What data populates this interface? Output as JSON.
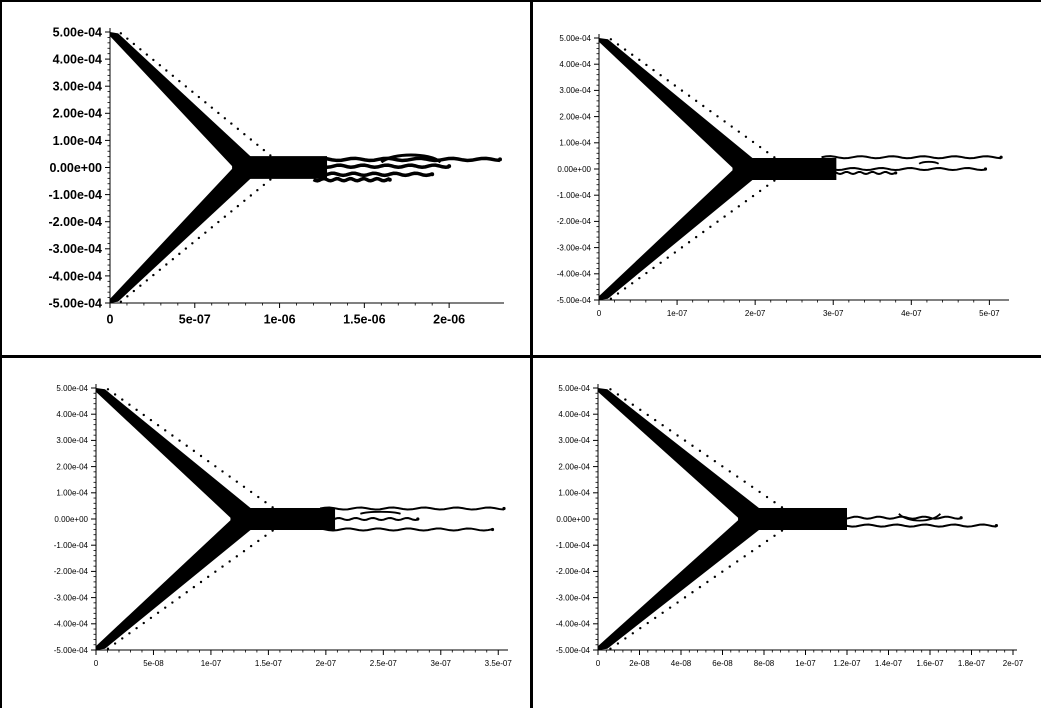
{
  "chart_data": [
    {
      "type": "scatter",
      "title": "",
      "xlabel": "",
      "ylabel": "",
      "xlim": [
        0,
        2.3e-06
      ],
      "ylim": [
        -0.0005,
        0.0005
      ],
      "x_ticks": [
        0,
        5e-07,
        1e-06,
        1.5e-06,
        2e-06
      ],
      "x_tick_labels": [
        "0",
        "5e-07",
        "1e-06",
        "1.5e-06",
        "2e-06"
      ],
      "y_ticks": [
        0.0005,
        0.0004,
        0.0003,
        0.0002,
        0.0001,
        0,
        -0.0001,
        -0.0002,
        -0.0003,
        -0.0004,
        -0.0005
      ],
      "y_tick_labels": [
        "5.00e-04",
        "4.00e-04",
        "3.00e-04",
        "2.00e-04",
        "1.00e-04",
        "0.00e+00",
        "-1.00e-04",
        "-2.00e-04",
        "-3.00e-04",
        "-4.00e-04",
        "-5.00e-04"
      ],
      "grid": false,
      "features": {
        "upper_branch_start": [
          0,
          0.0005
        ],
        "lower_branch_start": [
          0,
          -0.0005
        ],
        "convergence_x": 8e-07,
        "upper_edge_end": [
          8.5e-07,
          2e-05
        ],
        "trails": [
          {
            "x_end": 2.3e-06,
            "y": 3e-05
          },
          {
            "x_end": 2e-06,
            "y": 5e-06
          },
          {
            "x_end": 1.9e-06,
            "y": -2.5e-05
          },
          {
            "x_end": 1.65e-06,
            "y": -4.5e-05
          }
        ],
        "loop": {
          "x": [
            1.6e-06,
            1.95e-06
          ],
          "y": 5.5e-05
        }
      }
    },
    {
      "type": "scatter",
      "title": "",
      "xlabel": "",
      "ylabel": "",
      "xlim": [
        0,
        5.2e-07
      ],
      "ylim": [
        -0.0005,
        0.0005
      ],
      "x_ticks": [
        0,
        1e-07,
        2e-07,
        3e-07,
        4e-07,
        5e-07
      ],
      "x_tick_labels": [
        "0",
        "1e-07",
        "2e-07",
        "3e-07",
        "4e-07",
        "5e-07"
      ],
      "y_ticks": [
        0.0005,
        0.0004,
        0.0003,
        0.0002,
        0.0001,
        0,
        -0.0001,
        -0.0002,
        -0.0003,
        -0.0004,
        -0.0005
      ],
      "y_tick_labels": [
        "5.00e-04",
        "4.00e-04",
        "3.00e-04",
        "2.00e-04",
        "1.00e-04",
        "0.00e+00",
        "-1.00e-04",
        "-2.00e-04",
        "-3.00e-04",
        "-4.00e-04",
        "-5.00e-04"
      ],
      "grid": false,
      "features": {
        "convergence_x": 1.9e-07,
        "trails": [
          {
            "x_end": 5.15e-07,
            "y": 4.5e-05
          },
          {
            "x_end": 4.95e-07,
            "y": 0.0
          },
          {
            "x_end": 3.8e-07,
            "y": -1.5e-05
          }
        ],
        "loop": {
          "x": [
            4.1e-07,
            4.35e-07
          ],
          "y": 3e-05
        }
      }
    },
    {
      "type": "scatter",
      "title": "",
      "xlabel": "",
      "ylabel": "",
      "xlim": [
        0,
        3.55e-07
      ],
      "ylim": [
        -0.0005,
        0.0005
      ],
      "x_ticks": [
        0,
        5e-08,
        1e-07,
        1.5e-07,
        2e-07,
        2.5e-07,
        3e-07,
        3.5e-07
      ],
      "x_tick_labels": [
        "0",
        "5e-08",
        "1e-07",
        "1.5e-07",
        "2e-07",
        "2.5e-07",
        "3e-07",
        "3.5e-07"
      ],
      "y_ticks": [
        0.0005,
        0.0004,
        0.0003,
        0.0002,
        0.0001,
        0,
        -0.0001,
        -0.0002,
        -0.0003,
        -0.0004,
        -0.0005
      ],
      "y_tick_labels": [
        "5.00e-04",
        "4.00e-04",
        "3.00e-04",
        "2.00e-04",
        "1.00e-04",
        "0.00e+00",
        "-1.00e-04",
        "-2.00e-04",
        "-3.00e-04",
        "-4.00e-04",
        "-5.00e-04"
      ],
      "grid": false,
      "features": {
        "convergence_x": 1.3e-07,
        "trails": [
          {
            "x_end": 3.55e-07,
            "y": 4e-05
          },
          {
            "x_end": 2.8e-07,
            "y": 0.0
          },
          {
            "x_end": 3.45e-07,
            "y": -4e-05
          }
        ],
        "loop": {
          "x": [
            2.3e-07,
            2.65e-07
          ],
          "y": 3e-05
        }
      }
    },
    {
      "type": "scatter",
      "title": "",
      "xlabel": "",
      "ylabel": "",
      "xlim": [
        0,
        2e-07
      ],
      "ylim": [
        -0.0005,
        0.0005
      ],
      "x_ticks": [
        0,
        2e-08,
        4e-08,
        6e-08,
        8e-08,
        1e-07,
        1.2e-07,
        1.4e-07,
        1.6e-07,
        1.8e-07,
        2e-07
      ],
      "x_tick_labels": [
        "0",
        "2e-08",
        "4e-08",
        "6e-08",
        "8e-08",
        "1e-07",
        "1.2e-07",
        "1.4e-07",
        "1.6e-07",
        "1.8e-07",
        "2e-07"
      ],
      "y_ticks": [
        0.0005,
        0.0004,
        0.0003,
        0.0002,
        0.0001,
        0,
        -0.0001,
        -0.0002,
        -0.0003,
        -0.0004,
        -0.0005
      ],
      "y_tick_labels": [
        "5.00e-04",
        "4.00e-04",
        "3.00e-04",
        "2.00e-04",
        "1.00e-04",
        "0.00e+00",
        "-1.00e-04",
        "-2.00e-04",
        "-3.00e-04",
        "-4.00e-04",
        "-5.00e-04"
      ],
      "grid": false,
      "features": {
        "convergence_x": 7.5e-08,
        "trails": [
          {
            "x_end": 1.92e-07,
            "y": -2.5e-05
          },
          {
            "x_end": 1.75e-07,
            "y": 5e-06
          }
        ],
        "loop": {
          "x": [
            1.45e-07,
            1.65e-07
          ],
          "y": -1.5e-05
        }
      }
    }
  ]
}
